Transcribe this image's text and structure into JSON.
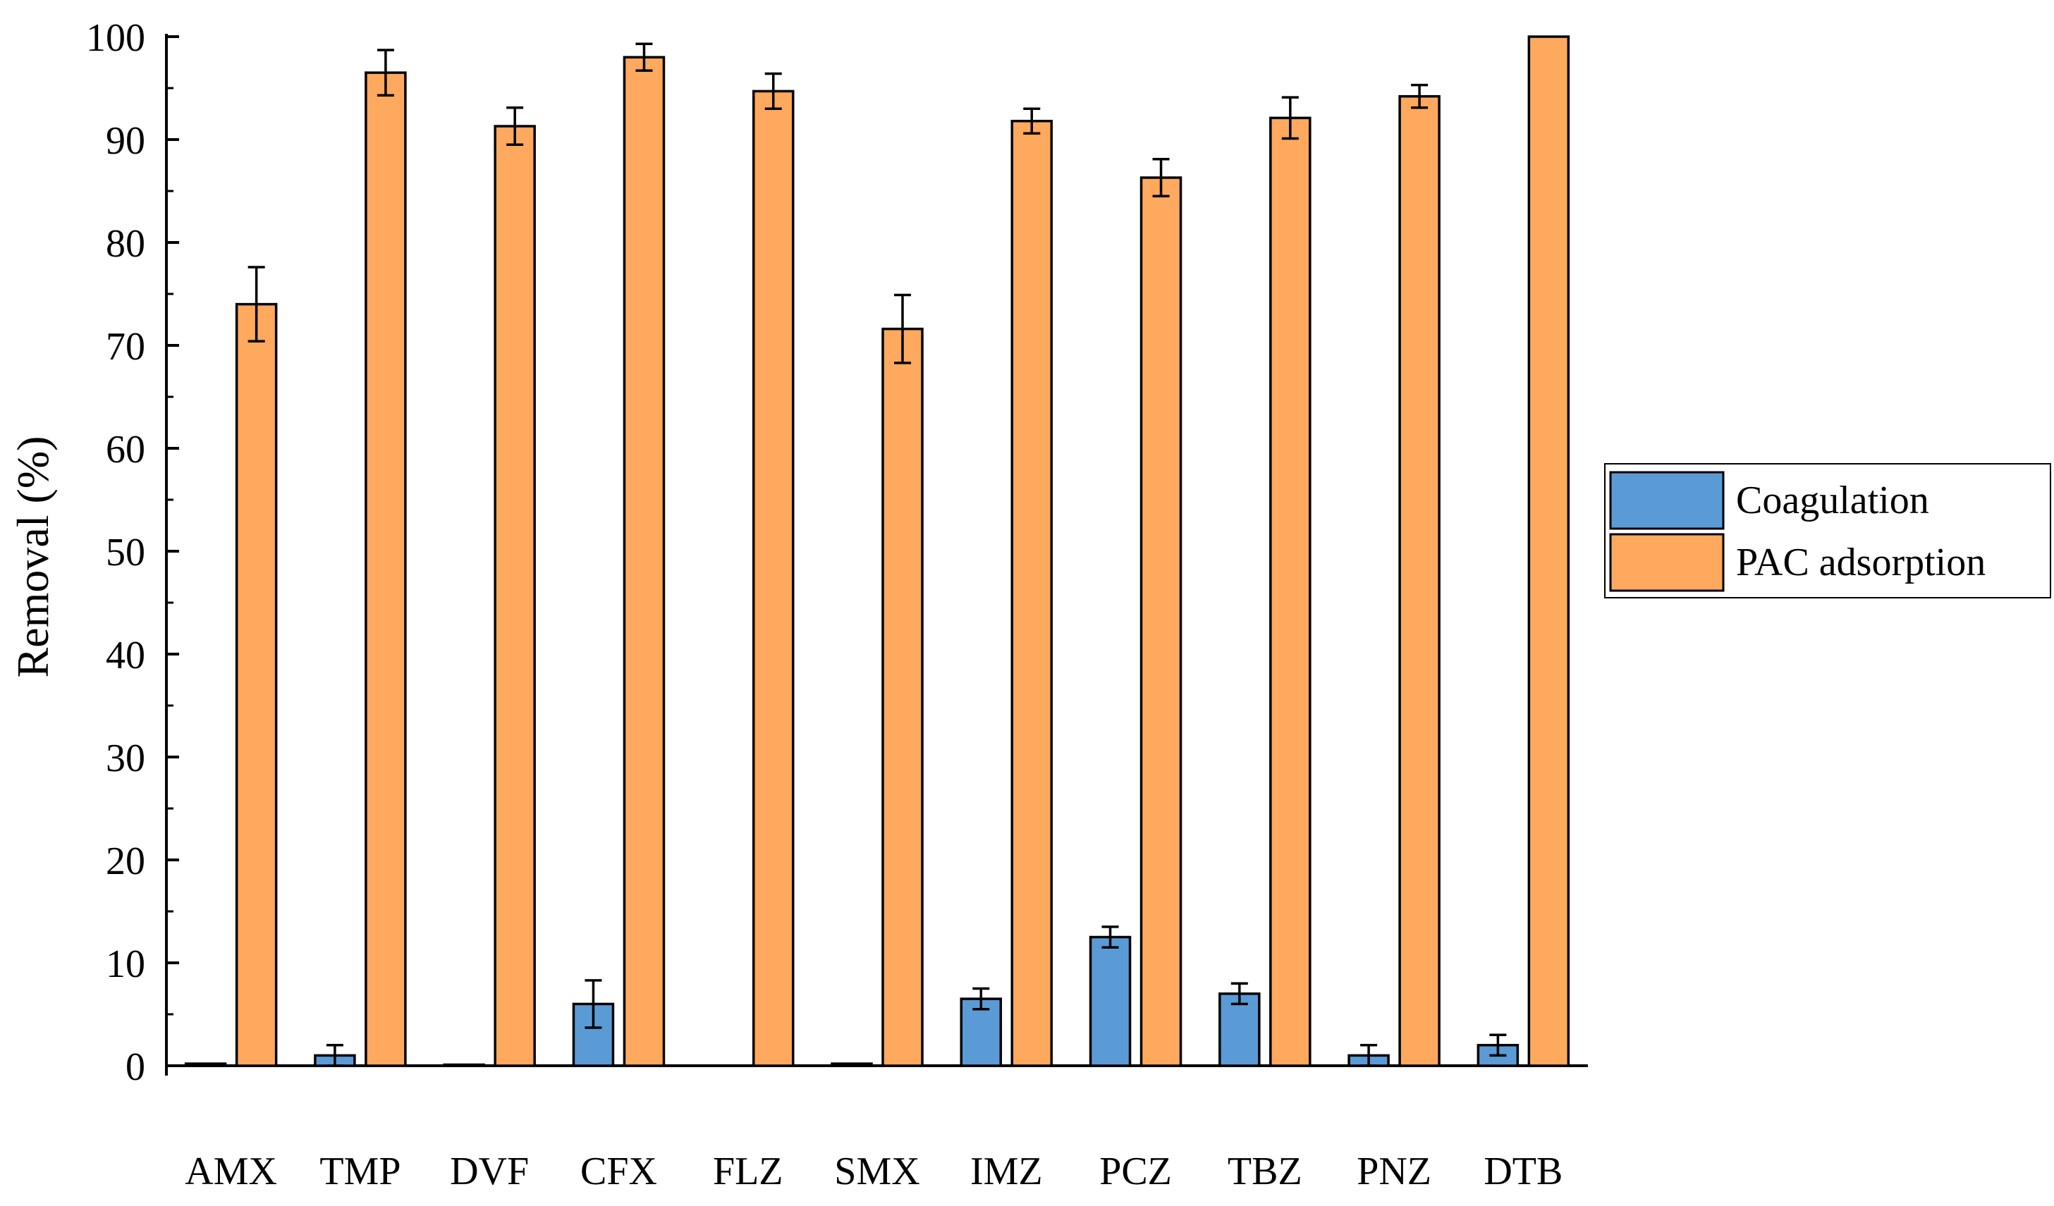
{
  "chart_data": {
    "type": "bar",
    "title": "",
    "xlabel": "",
    "ylabel": "Removal (%)",
    "ylim": [
      0,
      100
    ],
    "yticks": [
      0,
      10,
      20,
      30,
      40,
      50,
      60,
      70,
      80,
      90,
      100
    ],
    "categories": [
      "AMX",
      "TMP",
      "DVF",
      "CFX",
      "FLZ",
      "SMX",
      "IMZ",
      "PCZ",
      "TBZ",
      "PNZ",
      "DTB"
    ],
    "series": [
      {
        "name": "Coagulation",
        "color": "#5b9bd5",
        "values": [
          0.2,
          1.0,
          0.1,
          6.0,
          0,
          0.2,
          6.5,
          12.5,
          7.0,
          1.0,
          2.0
        ],
        "errors": [
          0,
          1.0,
          0,
          2.3,
          0,
          0,
          1.0,
          1.0,
          1.0,
          1.0,
          1.0
        ]
      },
      {
        "name": "PAC adsorption",
        "color": "#ffa95e",
        "values": [
          74.0,
          96.5,
          91.3,
          98.0,
          94.7,
          71.6,
          91.8,
          86.3,
          92.1,
          94.2,
          100
        ],
        "errors": [
          3.6,
          2.2,
          1.8,
          1.3,
          1.7,
          3.3,
          1.2,
          1.8,
          2.0,
          1.1,
          0
        ]
      }
    ],
    "legend": {
      "position": "right",
      "entries": [
        "Coagulation",
        "PAC adsorption"
      ]
    }
  }
}
